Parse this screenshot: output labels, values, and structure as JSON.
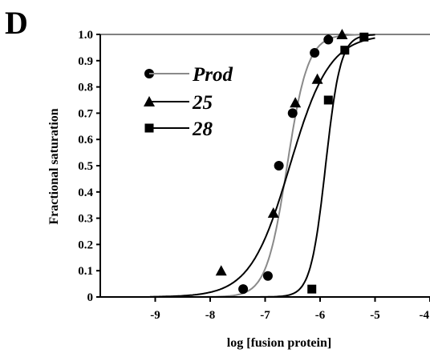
{
  "panel_label": "D",
  "chart_data": {
    "type": "scatter",
    "title": "",
    "xlabel": "log [fusion protein]",
    "ylabel": "Fractional saturation",
    "xlim": [
      -10,
      -4
    ],
    "ylim": [
      0,
      1.0
    ],
    "x_ticks": [
      -9,
      -8,
      -7,
      -6,
      -5,
      -4
    ],
    "x_tick_labels": [
      "-9",
      "-8",
      "-7",
      "-6",
      "-5",
      "-4"
    ],
    "y_ticks": [
      0,
      0.1,
      0.2,
      0.3,
      0.4,
      0.5,
      0.6,
      0.7,
      0.8,
      0.9,
      1.0
    ],
    "y_tick_labels": [
      "0",
      "0.1",
      "0.2",
      "0.3",
      "0.4",
      "0.5",
      "0.6",
      "0.7",
      "0.8",
      "0.9",
      "1.0"
    ],
    "reference_line_y": 1.0,
    "grid": false,
    "legend_position": "upper-left",
    "series": [
      {
        "name": "Prod",
        "marker": "circle",
        "line_color": "#8a8a8a",
        "points": [
          [
            -7.4,
            0.03
          ],
          [
            -6.95,
            0.08
          ],
          [
            -6.75,
            0.5
          ],
          [
            -6.5,
            0.7
          ],
          [
            -6.1,
            0.93
          ],
          [
            -5.85,
            0.98
          ]
        ],
        "fit": {
          "logEC50": -6.6,
          "hill": 2.3
        }
      },
      {
        "name": "25",
        "marker": "triangle",
        "line_color": "#000000",
        "points": [
          [
            -7.8,
            0.1
          ],
          [
            -6.85,
            0.32
          ],
          [
            -6.45,
            0.74
          ],
          [
            -6.05,
            0.83
          ],
          [
            -5.6,
            1.0
          ]
        ],
        "fit": {
          "logEC50": -6.55,
          "hill": 1.2
        }
      },
      {
        "name": "28",
        "marker": "square",
        "line_color": "#000000",
        "points": [
          [
            -6.15,
            0.03
          ],
          [
            -5.85,
            0.75
          ],
          [
            -5.55,
            0.94
          ],
          [
            -5.2,
            0.99
          ]
        ],
        "fit": {
          "logEC50": -5.9,
          "hill": 3.2
        }
      }
    ]
  }
}
